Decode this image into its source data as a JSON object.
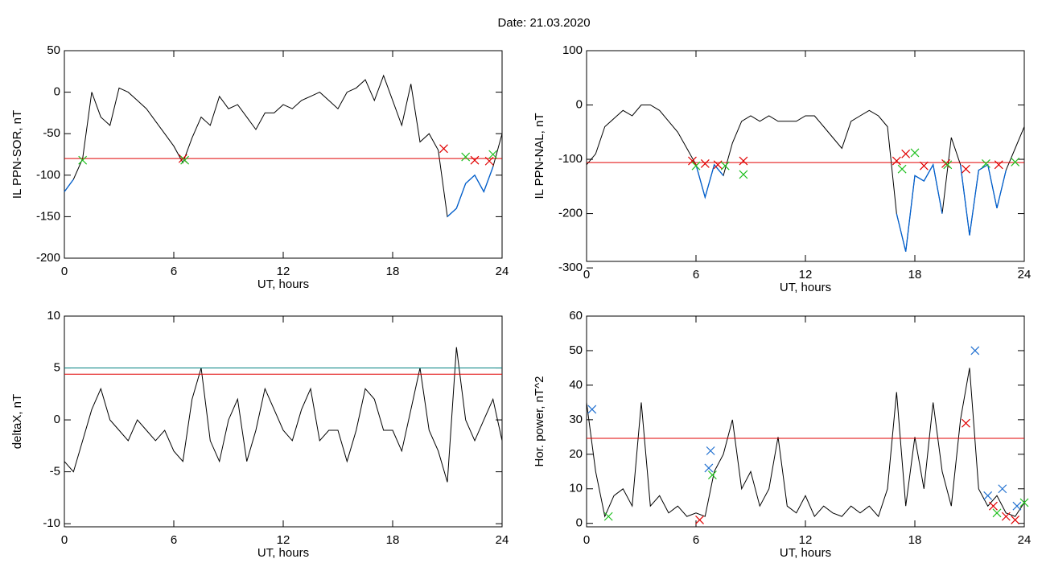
{
  "title": "Date:  21.03.2020",
  "chart_data": [
    {
      "type": "line",
      "xlabel": "UT, hours",
      "ylabel": "IL PPN-SOR, nT",
      "xlim": [
        0,
        24
      ],
      "xticks": [
        0,
        6,
        12,
        18,
        24
      ],
      "ylim": [
        -200,
        50
      ],
      "yticks": [
        -200,
        -150,
        -100,
        -50,
        0,
        50
      ],
      "x": [
        0,
        0.5,
        1,
        1.5,
        2,
        2.5,
        3,
        3.5,
        4,
        4.5,
        5,
        5.5,
        6,
        6.5,
        7,
        7.5,
        8,
        8.5,
        9,
        9.5,
        10,
        10.5,
        11,
        11.5,
        12,
        12.5,
        13,
        13.5,
        14,
        14.5,
        15,
        15.5,
        16,
        16.5,
        17,
        17.5,
        18,
        18.5,
        19,
        19.5,
        20,
        20.5,
        21,
        21.5,
        22,
        22.5,
        23,
        23.5,
        24
      ],
      "series": [
        {
          "color": "#000000",
          "below_color": "#0060d0",
          "values": [
            -120,
            -105,
            -80,
            0,
            -30,
            -40,
            5,
            0,
            -10,
            -20,
            -35,
            -50,
            -65,
            -85,
            -55,
            -30,
            -40,
            -5,
            -20,
            -15,
            -30,
            -45,
            -25,
            -25,
            -15,
            -20,
            -10,
            -5,
            0,
            -10,
            -20,
            0,
            5,
            15,
            -10,
            20,
            -10,
            -40,
            10,
            -60,
            -50,
            -70,
            -150,
            -140,
            -110,
            -100,
            -120,
            -90,
            -50
          ]
        }
      ],
      "hlines": [
        {
          "value": -80,
          "color": "#e00000"
        }
      ],
      "markers": [
        {
          "color": "#e00000",
          "x": [
            6.5,
            20.8,
            22.5,
            23.3
          ],
          "values": [
            -80,
            -68,
            -82,
            -83
          ]
        },
        {
          "color": "#20c020",
          "x": [
            1,
            6.6,
            22,
            23.5
          ],
          "values": [
            -82,
            -82,
            -78,
            -75
          ]
        }
      ]
    },
    {
      "type": "line",
      "xlabel": "UT, hours",
      "ylabel": "IL PPN-NAL, nT",
      "xlim": [
        0,
        24
      ],
      "xticks": [
        0,
        6,
        12,
        18,
        24
      ],
      "ylim": [
        -288,
        100
      ],
      "yticks": [
        -300,
        -200,
        -100,
        0,
        100
      ],
      "x": [
        0,
        0.5,
        1,
        1.5,
        2,
        2.5,
        3,
        3.5,
        4,
        4.5,
        5,
        5.5,
        6,
        6.5,
        7,
        7.5,
        8,
        8.5,
        9,
        9.5,
        10,
        10.5,
        11,
        11.5,
        12,
        12.5,
        13,
        13.5,
        14,
        14.5,
        15,
        15.5,
        16,
        16.5,
        17,
        17.5,
        18,
        18.5,
        19,
        19.5,
        20,
        20.5,
        21,
        21.5,
        22,
        22.5,
        23,
        23.5,
        24
      ],
      "series": [
        {
          "color": "#000000",
          "below_color": "#0060d0",
          "values": [
            -110,
            -90,
            -40,
            -25,
            -10,
            -20,
            0,
            0,
            -10,
            -30,
            -50,
            -80,
            -110,
            -170,
            -110,
            -130,
            -70,
            -30,
            -20,
            -30,
            -20,
            -30,
            -30,
            -30,
            -20,
            -20,
            -40,
            -60,
            -80,
            -30,
            -20,
            -10,
            -20,
            -40,
            -200,
            -270,
            -130,
            -140,
            -110,
            -200,
            -60,
            -110,
            -240,
            -120,
            -110,
            -190,
            -120,
            -80,
            -40
          ]
        }
      ],
      "hlines": [
        {
          "value": -106,
          "color": "#e00000"
        }
      ],
      "markers": [
        {
          "color": "#e00000",
          "x": [
            5.8,
            6.5,
            7.2,
            8.6,
            17,
            17.5,
            18.5,
            19.7,
            20.8,
            22.6
          ],
          "values": [
            -103,
            -108,
            -110,
            -103,
            -103,
            -90,
            -112,
            -108,
            -118,
            -110
          ]
        },
        {
          "color": "#20c020",
          "x": [
            6,
            7.6,
            8.6,
            17.3,
            18,
            19.8,
            21.9,
            23.5
          ],
          "values": [
            -112,
            -112,
            -128,
            -118,
            -88,
            -110,
            -108,
            -105
          ]
        }
      ]
    },
    {
      "type": "line",
      "xlabel": "UT, hours",
      "ylabel": "deltaX, nT",
      "xlim": [
        0,
        24
      ],
      "xticks": [
        0,
        6,
        12,
        18,
        24
      ],
      "ylim": [
        -10.3,
        10
      ],
      "yticks": [
        -10,
        -5,
        0,
        5,
        10
      ],
      "x": [
        0,
        0.5,
        1,
        1.5,
        2,
        2.5,
        3,
        3.5,
        4,
        4.5,
        5,
        5.5,
        6,
        6.5,
        7,
        7.5,
        8,
        8.5,
        9,
        9.5,
        10,
        10.5,
        11,
        11.5,
        12,
        12.5,
        13,
        13.5,
        14,
        14.5,
        15,
        15.5,
        16,
        16.5,
        17,
        17.5,
        18,
        18.5,
        19,
        19.5,
        20,
        20.5,
        21,
        21.5,
        22,
        22.5,
        23,
        23.5,
        24
      ],
      "series": [
        {
          "color": "#000000",
          "values": [
            -4,
            -5,
            -2,
            1,
            3,
            0,
            -1,
            -2,
            0,
            -1,
            -2,
            -1,
            -3,
            -4,
            2,
            5,
            -2,
            -4,
            0,
            2,
            -4,
            -1,
            3,
            1,
            -1,
            -2,
            1,
            3,
            -2,
            -1,
            -1,
            -4,
            -1,
            3,
            2,
            -1,
            -1,
            -3,
            1,
            5,
            -1,
            -3,
            -6,
            7,
            0,
            -2,
            0,
            2,
            -2
          ]
        }
      ],
      "hlines": [
        {
          "value": 5,
          "color": "#008080"
        },
        {
          "value": 4.4,
          "color": "#e00000"
        }
      ],
      "markers": []
    },
    {
      "type": "line",
      "xlabel": "UT, hours",
      "ylabel": "Hor. power, nT^2",
      "xlim": [
        0,
        24
      ],
      "xticks": [
        0,
        6,
        12,
        18,
        24
      ],
      "ylim": [
        -1,
        60
      ],
      "yticks": [
        0,
        10,
        20,
        30,
        40,
        50,
        60
      ],
      "x": [
        0,
        0.5,
        1,
        1.5,
        2,
        2.5,
        3,
        3.5,
        4,
        4.5,
        5,
        5.5,
        6,
        6.5,
        7,
        7.5,
        8,
        8.5,
        9,
        9.5,
        10,
        10.5,
        11,
        11.5,
        12,
        12.5,
        13,
        13.5,
        14,
        14.5,
        15,
        15.5,
        16,
        16.5,
        17,
        17.5,
        18,
        18.5,
        19,
        19.5,
        20,
        20.5,
        21,
        21.5,
        22,
        22.5,
        23,
        23.5,
        24
      ],
      "series": [
        {
          "color": "#000000",
          "values": [
            35,
            15,
            2,
            8,
            10,
            5,
            35,
            5,
            8,
            3,
            5,
            2,
            3,
            2,
            15,
            20,
            30,
            10,
            15,
            5,
            10,
            25,
            5,
            3,
            8,
            2,
            5,
            3,
            2,
            5,
            3,
            5,
            2,
            10,
            38,
            5,
            25,
            10,
            35,
            15,
            5,
            30,
            45,
            10,
            5,
            8,
            3,
            2,
            6
          ]
        }
      ],
      "hlines": [
        {
          "value": 24.6,
          "color": "#e00000"
        }
      ],
      "markers": [
        {
          "color": "#2070d0",
          "x": [
            0.3,
            6.7,
            6.8,
            21.3,
            22,
            22.8,
            23.6
          ],
          "values": [
            33,
            16,
            21,
            50,
            8,
            10,
            5
          ]
        },
        {
          "color": "#e00000",
          "x": [
            6.2,
            20.8,
            22.3,
            23,
            23.5
          ],
          "values": [
            1,
            29,
            5,
            2,
            1
          ]
        },
        {
          "color": "#20c020",
          "x": [
            1.2,
            6.9,
            22.5,
            24
          ],
          "values": [
            2,
            14,
            3,
            6
          ]
        }
      ]
    }
  ]
}
